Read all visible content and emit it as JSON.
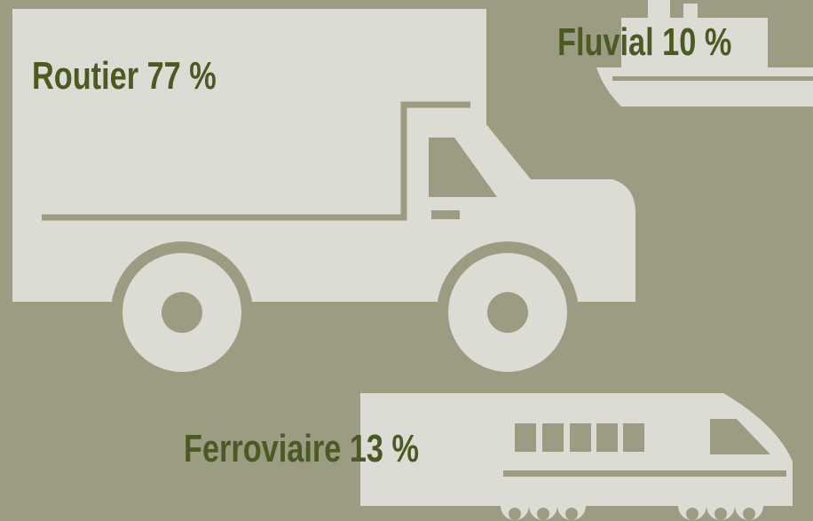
{
  "items": [
    {
      "label": "Routier 77 %"
    },
    {
      "label": "Fluvial 10 %"
    },
    {
      "label": "Ferroviaire 13 %"
    }
  ]
}
